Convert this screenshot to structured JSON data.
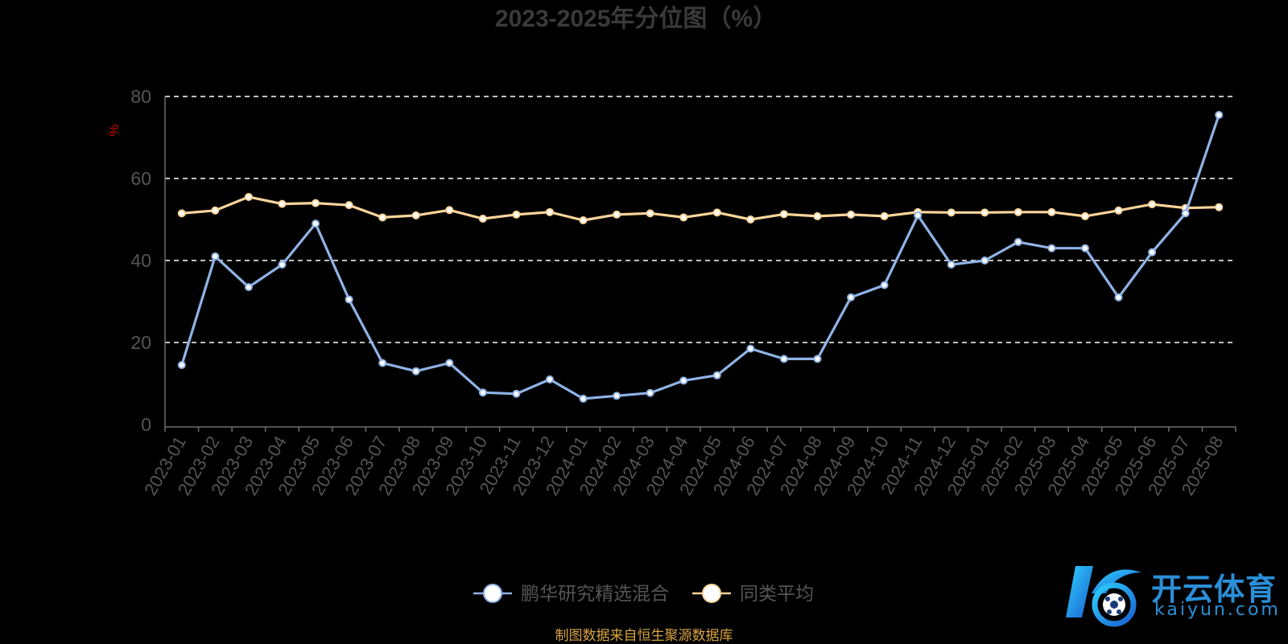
{
  "chart_data": {
    "type": "line",
    "title": "2023-2025年分位图（%）",
    "ylabel": "%",
    "ylim": [
      0,
      80
    ],
    "yticks": [
      0,
      20,
      40,
      60,
      80
    ],
    "grid": true,
    "legend_position": "bottom-center",
    "categories": [
      "2023-01",
      "2023-02",
      "2023-03",
      "2023-04",
      "2023-05",
      "2023-06",
      "2023-07",
      "2023-08",
      "2023-09",
      "2023-10",
      "2023-11",
      "2023-12",
      "2024-01",
      "2024-02",
      "2024-03",
      "2024-04",
      "2024-05",
      "2024-06",
      "2024-07",
      "2024-08",
      "2024-09",
      "2024-10",
      "2024-11",
      "2024-12",
      "2025-01",
      "2025-02",
      "2025-03",
      "2025-04",
      "2025-05",
      "2025-06",
      "2025-07",
      "2025-08"
    ],
    "series": [
      {
        "name": "鹏华研究精选混合",
        "color": "#8fb3e6",
        "values": [
          14.5,
          41,
          33.5,
          39,
          49,
          30.5,
          15,
          13,
          15,
          7.8,
          7.5,
          11,
          6.3,
          7,
          7.7,
          10.7,
          12,
          18.5,
          16,
          16,
          31,
          34,
          51,
          39,
          40,
          44.5,
          43,
          43,
          31,
          42,
          51.5,
          75.5
        ]
      },
      {
        "name": "同类平均",
        "color": "#fbd59a",
        "values": [
          51.5,
          52.2,
          55.5,
          53.8,
          54,
          53.5,
          50.5,
          51,
          52.3,
          50.2,
          51.2,
          51.8,
          49.8,
          51.2,
          51.5,
          50.5,
          51.7,
          50,
          51.3,
          50.8,
          51.2,
          50.8,
          51.8,
          51.7,
          51.7,
          51.8,
          51.8,
          50.8,
          52.2,
          53.7,
          52.8,
          53
        ]
      }
    ]
  },
  "footer": {
    "source_note": "制图数据来自恒生聚源数据库"
  },
  "watermark": {
    "cn": "开云体育",
    "en": "kaiyun.com"
  },
  "colors": {
    "background": "#000000",
    "axis": "#6e6e6e",
    "grid": "#ffffff",
    "title": "#3a3a3a",
    "ylabel": "#cc0000",
    "tick_label": "#555555",
    "source_note": "#d9a441"
  }
}
